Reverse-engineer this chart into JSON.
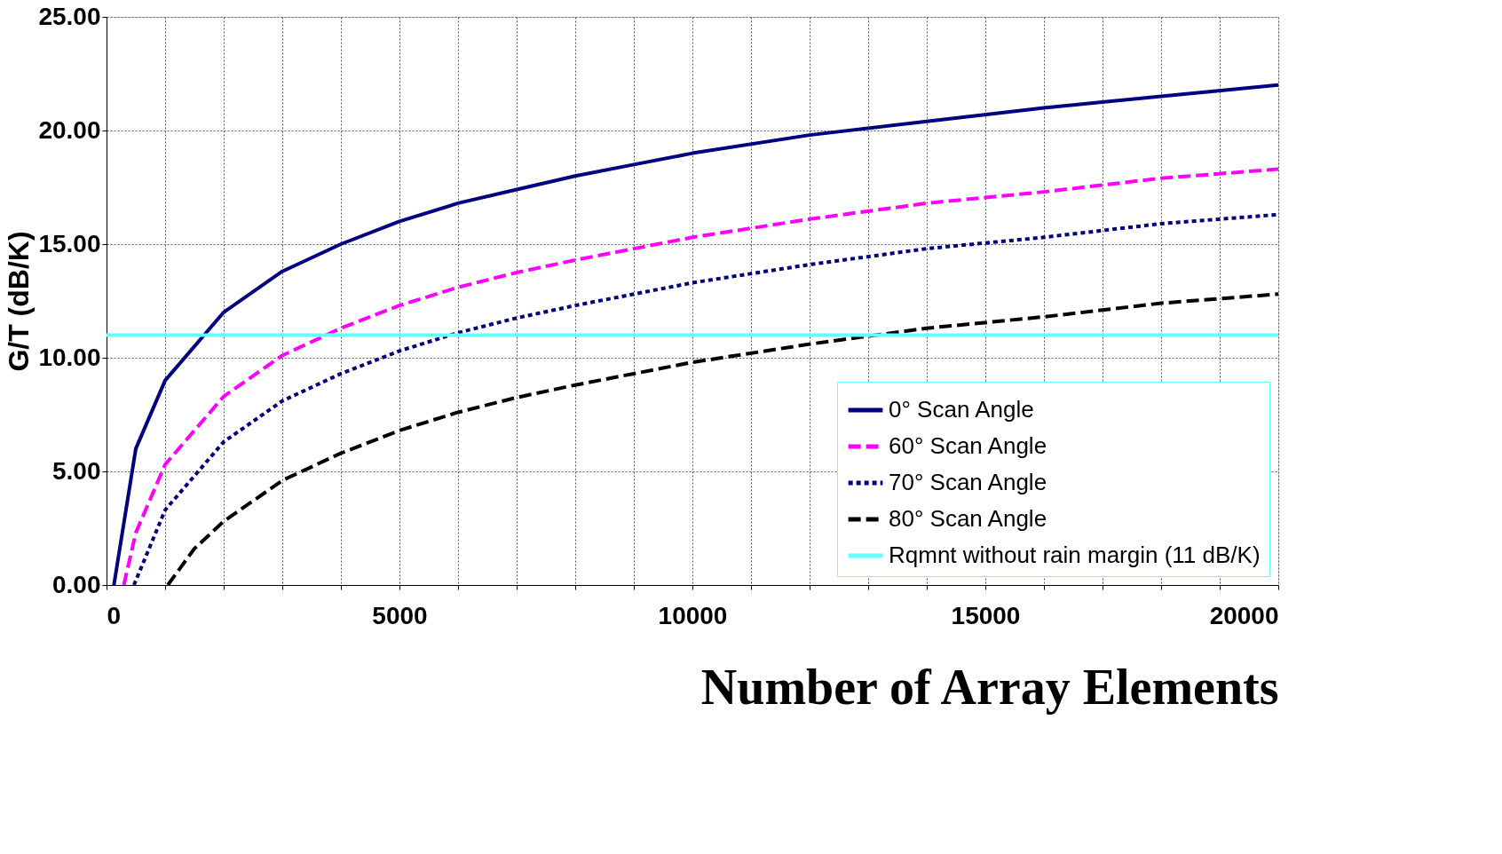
{
  "chart_data": {
    "type": "line",
    "xlabel": "Number of Array Elements",
    "ylabel": "G/T (dB/K)",
    "xlim": [
      0,
      20000
    ],
    "ylim": [
      0,
      25
    ],
    "xticks": [
      0,
      {
        "value": 1000,
        "label": null
      },
      {
        "value": 2000,
        "label": null
      },
      {
        "value": 3000,
        "label": null
      },
      {
        "value": 4000,
        "label": null
      },
      5000,
      {
        "value": 6000,
        "label": null
      },
      {
        "value": 7000,
        "label": null
      },
      {
        "value": 8000,
        "label": null
      },
      {
        "value": 9000,
        "label": null
      },
      10000,
      {
        "value": 11000,
        "label": null
      },
      {
        "value": 12000,
        "label": null
      },
      {
        "value": 13000,
        "label": null
      },
      {
        "value": 14000,
        "label": null
      },
      15000,
      {
        "value": 16000,
        "label": null
      },
      {
        "value": 17000,
        "label": null
      },
      {
        "value": 18000,
        "label": null
      },
      {
        "value": 19000,
        "label": null
      },
      20000
    ],
    "yticks": [
      {
        "value": 0,
        "label": "0.00"
      },
      {
        "value": 5,
        "label": "5.00"
      },
      {
        "value": 10,
        "label": "10.00"
      },
      {
        "value": 15,
        "label": "15.00"
      },
      {
        "value": 20,
        "label": "20.00"
      },
      {
        "value": 25,
        "label": "25.00"
      }
    ],
    "grid": true,
    "legend": "bottom right",
    "series": [
      {
        "name": "0° Scan Angle",
        "color": "#000080",
        "line_style": "solid",
        "x": [
          126,
          500,
          1000,
          2000,
          3000,
          4000,
          5000,
          6000,
          7000,
          8000,
          9000,
          10000,
          12000,
          14000,
          16000,
          18000,
          20000
        ],
        "values": [
          0,
          6.0,
          9.0,
          12.0,
          13.8,
          15.0,
          16.0,
          16.8,
          17.4,
          18.0,
          18.5,
          19.0,
          19.8,
          20.4,
          21.0,
          21.5,
          22.0
        ]
      },
      {
        "name": "60° Scan Angle",
        "color": "#ff00ff",
        "line_style": "dashed",
        "x": [
          295,
          500,
          1000,
          2000,
          3000,
          4000,
          5000,
          6000,
          7000,
          8000,
          9000,
          10000,
          12000,
          14000,
          16000,
          18000,
          20000
        ],
        "values": [
          0,
          2.3,
          5.3,
          8.3,
          10.1,
          11.3,
          12.3,
          13.1,
          13.75,
          14.3,
          14.8,
          15.3,
          16.1,
          16.8,
          17.3,
          17.9,
          18.3
        ]
      },
      {
        "name": "70° Scan Angle",
        "color": "#000080",
        "line_style": "dotted",
        "x": [
          468,
          1000,
          2000,
          3000,
          4000,
          5000,
          6000,
          7000,
          8000,
          9000,
          10000,
          12000,
          14000,
          16000,
          18000,
          20000
        ],
        "values": [
          0,
          3.3,
          6.3,
          8.1,
          9.3,
          10.3,
          11.1,
          11.75,
          12.3,
          12.8,
          13.3,
          14.1,
          14.8,
          15.3,
          15.9,
          16.3
        ]
      },
      {
        "name": "80° Scan Angle",
        "color": "#000000",
        "line_style": "dashed",
        "x": [
          1047,
          1500,
          2000,
          3000,
          4000,
          5000,
          6000,
          7000,
          8000,
          9000,
          10000,
          12000,
          14000,
          16000,
          18000,
          20000
        ],
        "values": [
          0,
          1.6,
          2.8,
          4.6,
          5.8,
          6.8,
          7.6,
          8.25,
          8.8,
          9.3,
          9.8,
          10.6,
          11.3,
          11.8,
          12.4,
          12.8
        ]
      }
    ],
    "ref_lines": [
      {
        "axis": "y",
        "value": 11,
        "label": "Rqmnt without rain margin (11 dB/K)",
        "color": "#66ffff",
        "line_style": "solid"
      }
    ]
  }
}
